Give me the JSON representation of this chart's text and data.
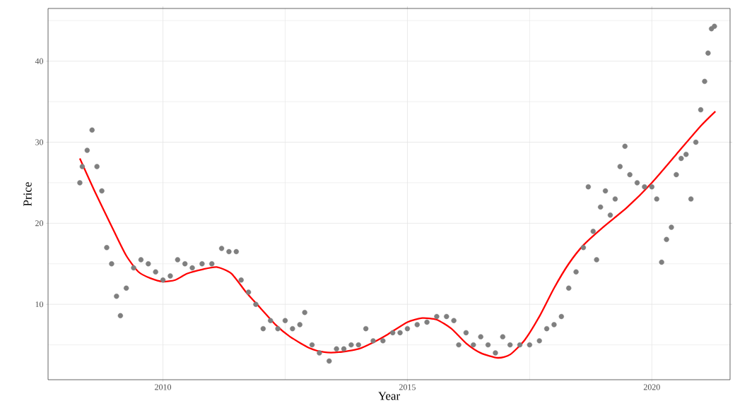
{
  "chart_data": {
    "type": "scatter",
    "xlabel": "Year",
    "ylabel": "Price",
    "xlim": [
      2007.65,
      2021.6
    ],
    "ylim": [
      0.7,
      46.5
    ],
    "xticks": [
      2010,
      {
        "value": 2012.5,
        "label": null
      },
      2015,
      {
        "value": 2017.5,
        "label": null
      },
      2020
    ],
    "yticks": [
      {
        "value": 5,
        "label": null
      },
      10,
      {
        "value": 15,
        "label": null
      },
      20,
      {
        "value": 25,
        "label": null
      },
      30,
      {
        "value": 35,
        "label": null
      },
      40,
      {
        "value": 45,
        "label": null
      }
    ],
    "grid": true,
    "series": [
      {
        "color": "#7f7f7f",
        "x": [
          2008.3,
          2008.35,
          2008.45,
          2008.55,
          2008.65,
          2008.75,
          2008.85,
          2008.95,
          2009.05,
          2009.13,
          2009.25,
          2009.4,
          2009.55,
          2009.7,
          2009.85,
          2010.0,
          2010.15,
          2010.3,
          2010.45,
          2010.6,
          2010.8,
          2011.0,
          2011.2,
          2011.35,
          2011.5,
          2011.6,
          2011.75,
          2011.9,
          2012.05,
          2012.2,
          2012.35,
          2012.5,
          2012.65,
          2012.8,
          2012.9,
          2013.05,
          2013.2,
          2013.4,
          2013.55,
          2013.7,
          2013.85,
          2014.0,
          2014.15,
          2014.3,
          2014.5,
          2014.7,
          2014.85,
          2015.0,
          2015.2,
          2015.4,
          2015.6,
          2015.8,
          2015.95,
          2016.05,
          2016.2,
          2016.35,
          2016.5,
          2016.65,
          2016.8,
          2016.95,
          2017.1,
          2017.3,
          2017.5,
          2017.7,
          2017.85,
          2018.0,
          2018.15,
          2018.3,
          2018.45,
          2018.6,
          2018.7,
          2018.8,
          2018.87,
          2018.95,
          2019.05,
          2019.15,
          2019.25,
          2019.35,
          2019.45,
          2019.55,
          2019.7,
          2019.85,
          2020.0,
          2020.1,
          2020.2,
          2020.3,
          2020.4,
          2020.5,
          2020.6,
          2020.7,
          2020.8,
          2020.9,
          2021.0,
          2021.08,
          2021.15,
          2021.22,
          2021.28
        ],
        "values": [
          25,
          27,
          29,
          31.5,
          27,
          24,
          17,
          15,
          11,
          8.6,
          12,
          14.5,
          15.5,
          15,
          14,
          13,
          13.5,
          15.5,
          15,
          14.5,
          15,
          15,
          16.9,
          16.5,
          16.5,
          13,
          11.5,
          10,
          7,
          8,
          7,
          8,
          7,
          7.5,
          9,
          5,
          4,
          3,
          4.5,
          4.5,
          5,
          5,
          7,
          5.5,
          5.5,
          6.5,
          6.5,
          7,
          7.5,
          7.8,
          8.5,
          8.5,
          8,
          5,
          6.5,
          5,
          6,
          5,
          4,
          6,
          5,
          5,
          5,
          5.5,
          7,
          7.5,
          8.5,
          12,
          14,
          17,
          24.5,
          19,
          15.5,
          22,
          24,
          21,
          23,
          27,
          29.5,
          26,
          25,
          24.5,
          24.5,
          23,
          15.2,
          18,
          19.5,
          26,
          28,
          28.5,
          23,
          30,
          34,
          37.5,
          41,
          44,
          44.3
        ]
      },
      {
        "type": "line",
        "color": "#ff0000",
        "x": [
          2008.3,
          2008.6,
          2009.0,
          2009.25,
          2009.5,
          2009.75,
          2010.0,
          2010.25,
          2010.5,
          2010.8,
          2011.1,
          2011.4,
          2011.7,
          2012.0,
          2012.3,
          2012.6,
          2013.0,
          2013.3,
          2013.6,
          2014.0,
          2014.3,
          2014.6,
          2015.0,
          2015.3,
          2015.6,
          2015.9,
          2016.2,
          2016.5,
          2016.85,
          2017.1,
          2017.4,
          2017.7,
          2018.0,
          2018.3,
          2018.6,
          2019.0,
          2019.5,
          2020.0,
          2020.5,
          2021.0,
          2021.3
        ],
        "values": [
          28,
          24,
          19,
          16,
          14,
          13.2,
          12.8,
          13,
          13.8,
          14.3,
          14.6,
          13.8,
          11.5,
          9.5,
          7.5,
          6,
          4.6,
          4.1,
          4.1,
          4.5,
          5.3,
          6.3,
          7.8,
          8.3,
          8.1,
          7,
          5.2,
          4,
          3.4,
          3.8,
          5.6,
          8.5,
          12,
          15,
          17.3,
          19.5,
          22,
          25,
          28.5,
          32,
          33.8
        ]
      }
    ]
  }
}
